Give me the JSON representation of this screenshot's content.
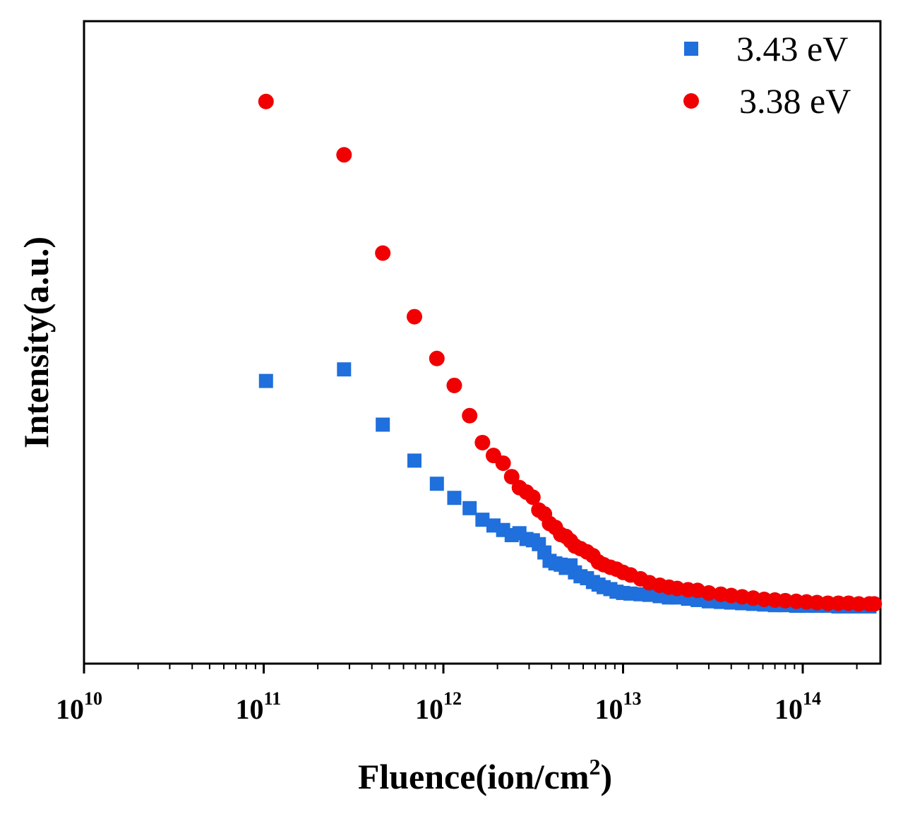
{
  "chart_data": {
    "type": "scatter",
    "title": "",
    "xlabel": "Fluence(ion/cm",
    "xlabel_sup": "2",
    "xlabel_suffix": ")",
    "ylabel": "Intensity(a.u.)",
    "x_scale": "log",
    "xlim": [
      10000000000.0,
      250000000000000.0
    ],
    "ylim": [
      0,
      100
    ],
    "x_tick_labels": [
      {
        "base": "10",
        "exp": "10"
      },
      {
        "base": "10",
        "exp": "11"
      },
      {
        "base": "10",
        "exp": "12"
      },
      {
        "base": "10",
        "exp": "13"
      },
      {
        "base": "10",
        "exp": "14"
      }
    ],
    "legend_position": "top-right",
    "series": [
      {
        "name": "3.43 eV",
        "marker": "square",
        "color": "#1f6fdc",
        "points": [
          [
            103000000000.0,
            44.0
          ],
          [
            280000000000.0,
            45.8
          ],
          [
            460000000000.0,
            37.2
          ],
          [
            690000000000.0,
            31.6
          ],
          [
            920000000000.0,
            28.0
          ],
          [
            1150000000000.0,
            25.8
          ],
          [
            1400000000000.0,
            24.2
          ],
          [
            1650000000000.0,
            22.4
          ],
          [
            1900000000000.0,
            21.5
          ],
          [
            2150000000000.0,
            20.8
          ],
          [
            2400000000000.0,
            20.0
          ],
          [
            2650000000000.0,
            20.3
          ],
          [
            2900000000000.0,
            19.4
          ],
          [
            3150000000000.0,
            19.2
          ],
          [
            3400000000000.0,
            18.6
          ],
          [
            3650000000000.0,
            17.3
          ],
          [
            3900000000000.0,
            16.0
          ],
          [
            4200000000000.0,
            15.6
          ],
          [
            4500000000000.0,
            15.4
          ],
          [
            4800000000000.0,
            14.9
          ],
          [
            5100000000000.0,
            15.3
          ],
          [
            5400000000000.0,
            14.2
          ],
          [
            5800000000000.0,
            13.6
          ],
          [
            6300000000000.0,
            13.3
          ],
          [
            6800000000000.0,
            12.7
          ],
          [
            7300000000000.0,
            12.3
          ],
          [
            7800000000000.0,
            11.9
          ],
          [
            8500000000000.0,
            11.6
          ],
          [
            9200000000000.0,
            11.2
          ],
          [
            10000000000000.0,
            11.0
          ],
          [
            11000000000000.0,
            10.9
          ],
          [
            12500000000000.0,
            10.8
          ],
          [
            14000000000000.0,
            10.7
          ],
          [
            16000000000000.0,
            10.5
          ],
          [
            18000000000000.0,
            10.3
          ],
          [
            20000000000000.0,
            10.3
          ],
          [
            23000000000000.0,
            10.1
          ],
          [
            26000000000000.0,
            9.9
          ],
          [
            30000000000000.0,
            9.7
          ],
          [
            35000000000000.0,
            9.6
          ],
          [
            40000000000000.0,
            9.5
          ],
          [
            46000000000000.0,
            9.4
          ],
          [
            53000000000000.0,
            9.3
          ],
          [
            61000000000000.0,
            9.2
          ],
          [
            70000000000000.0,
            9.1
          ],
          [
            80000000000000.0,
            9.1
          ],
          [
            92000000000000.0,
            9.0
          ],
          [
            105000000000000.0,
            9.0
          ],
          [
            120000000000000.0,
            9.0
          ],
          [
            138000000000000.0,
            9.0
          ],
          [
            158000000000000.0,
            8.9
          ],
          [
            180000000000000.0,
            8.9
          ],
          [
            205000000000000.0,
            8.9
          ],
          [
            235000000000000.0,
            8.9
          ]
        ]
      },
      {
        "name": "3.38 eV",
        "marker": "circle",
        "color": "#f00000",
        "points": [
          [
            103000000000.0,
            87.5
          ],
          [
            280000000000.0,
            79.2
          ],
          [
            460000000000.0,
            63.9
          ],
          [
            690000000000.0,
            54.0
          ],
          [
            920000000000.0,
            47.5
          ],
          [
            1150000000000.0,
            43.3
          ],
          [
            1400000000000.0,
            38.6
          ],
          [
            1650000000000.0,
            34.4
          ],
          [
            1900000000000.0,
            32.4
          ],
          [
            2150000000000.0,
            31.2
          ],
          [
            2400000000000.0,
            29.1
          ],
          [
            2650000000000.0,
            27.4
          ],
          [
            2900000000000.0,
            26.7
          ],
          [
            3150000000000.0,
            25.9
          ],
          [
            3400000000000.0,
            23.9
          ],
          [
            3650000000000.0,
            23.3
          ],
          [
            3900000000000.0,
            21.8
          ],
          [
            4200000000000.0,
            21.2
          ],
          [
            4500000000000.0,
            20.1
          ],
          [
            4800000000000.0,
            19.8
          ],
          [
            5100000000000.0,
            19.1
          ],
          [
            5400000000000.0,
            18.3
          ],
          [
            5800000000000.0,
            17.9
          ],
          [
            6300000000000.0,
            17.4
          ],
          [
            6800000000000.0,
            16.8
          ],
          [
            7300000000000.0,
            15.8
          ],
          [
            7800000000000.0,
            15.4
          ],
          [
            8500000000000.0,
            15.0
          ],
          [
            9200000000000.0,
            14.7
          ],
          [
            10000000000000.0,
            14.2
          ],
          [
            11000000000000.0,
            13.8
          ],
          [
            12500000000000.0,
            13.2
          ],
          [
            14000000000000.0,
            12.6
          ],
          [
            16000000000000.0,
            12.2
          ],
          [
            18000000000000.0,
            11.9
          ],
          [
            20000000000000.0,
            11.7
          ],
          [
            23000000000000.0,
            11.5
          ],
          [
            26000000000000.0,
            11.4
          ],
          [
            30000000000000.0,
            11.0
          ],
          [
            35000000000000.0,
            10.8
          ],
          [
            40000000000000.0,
            10.6
          ],
          [
            46000000000000.0,
            10.4
          ],
          [
            53000000000000.0,
            10.2
          ],
          [
            61000000000000.0,
            10.0
          ],
          [
            70000000000000.0,
            9.9
          ],
          [
            80000000000000.0,
            9.8
          ],
          [
            92000000000000.0,
            9.7
          ],
          [
            105000000000000.0,
            9.6
          ],
          [
            120000000000000.0,
            9.5
          ],
          [
            138000000000000.0,
            9.4
          ],
          [
            158000000000000.0,
            9.4
          ],
          [
            180000000000000.0,
            9.4
          ],
          [
            205000000000000.0,
            9.3
          ],
          [
            235000000000000.0,
            9.3
          ],
          [
            250000000000000.0,
            9.3
          ]
        ]
      }
    ]
  }
}
